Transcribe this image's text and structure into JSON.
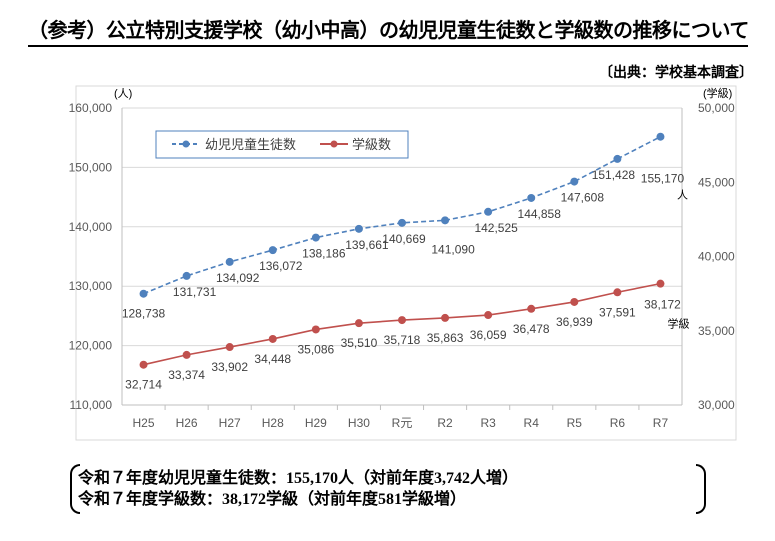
{
  "title": "（参考）公立特別支援学校（幼小中高）の幼児児童生徒数と学級数の推移について",
  "source": "〔出典：学校基本調査〕",
  "chart_data": {
    "type": "line",
    "categories": [
      "H25",
      "H26",
      "H27",
      "H28",
      "H29",
      "H30",
      "R元",
      "R2",
      "R3",
      "R4",
      "R5",
      "R6",
      "R7"
    ],
    "left_axis": {
      "unit_label": "(人)",
      "ylim": [
        110000,
        160000
      ],
      "ticks": [
        "110,000",
        "120,000",
        "130,000",
        "140,000",
        "150,000",
        "160,000"
      ]
    },
    "right_axis": {
      "unit_label": "(学級)",
      "ylim": [
        30000,
        50000
      ],
      "ticks": [
        "30,000",
        "35,000",
        "40,000",
        "45,000",
        "50,000"
      ]
    },
    "grid": true,
    "legend_placement": "top-left",
    "series": [
      {
        "name": "幼児児童生徒数",
        "axis": "left",
        "color": "#4F81BD",
        "style": "dashed",
        "values": [
          128738,
          131731,
          134092,
          136072,
          138186,
          139661,
          140669,
          141090,
          142525,
          144858,
          147608,
          151428,
          155170
        ],
        "labels": [
          "128,738",
          "131,731",
          "134,092",
          "136,072",
          "138,186",
          "139,661",
          "140,669",
          "141,090",
          "142,525",
          "144,858",
          "147,608",
          "151,428",
          "155,170"
        ],
        "end_unit": "人"
      },
      {
        "name": "学級数",
        "axis": "right",
        "color": "#C0504D",
        "style": "solid",
        "values": [
          32714,
          33374,
          33902,
          34448,
          35086,
          35510,
          35718,
          35863,
          36059,
          36478,
          36939,
          37591,
          38172
        ],
        "labels": [
          "32,714",
          "33,374",
          "33,902",
          "34,448",
          "35,086",
          "35,510",
          "35,718",
          "35,863",
          "36,059",
          "36,478",
          "36,939",
          "37,591",
          "38,172"
        ],
        "end_unit": "学級"
      }
    ]
  },
  "summary": {
    "line1": "令和７年度幼児児童生徒数：155,170人（対前年度3,742人増）",
    "line2": "令和７年度学級数：38,172学級（対前年度581学級増）"
  }
}
